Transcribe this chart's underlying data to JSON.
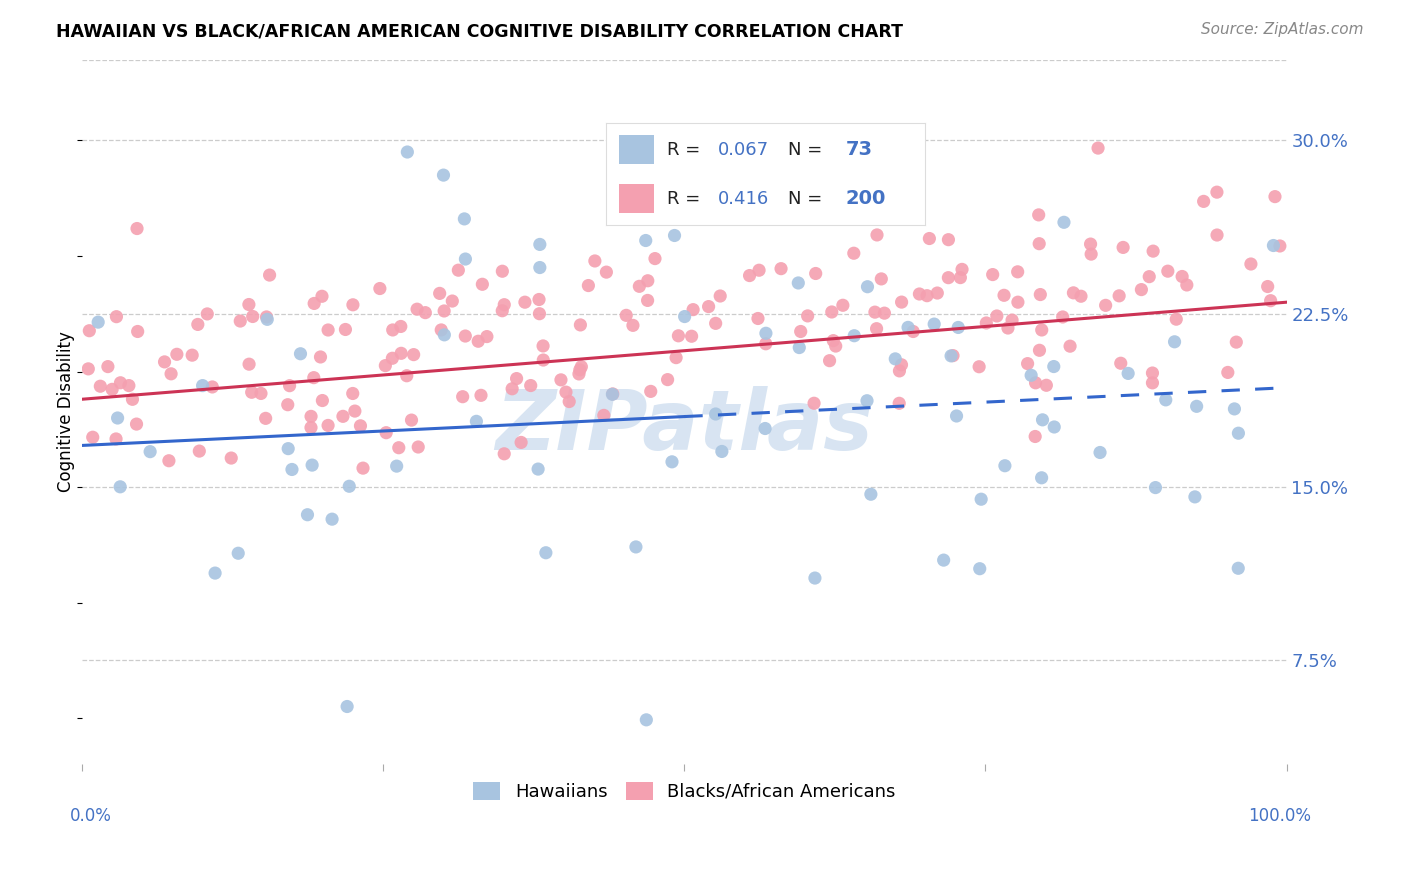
{
  "title": "HAWAIIAN VS BLACK/AFRICAN AMERICAN COGNITIVE DISABILITY CORRELATION CHART",
  "source": "Source: ZipAtlas.com",
  "ylabel": "Cognitive Disability",
  "ytick_labels": [
    "7.5%",
    "15.0%",
    "22.5%",
    "30.0%"
  ],
  "ytick_values": [
    0.075,
    0.15,
    0.225,
    0.3
  ],
  "xlim": [
    0.0,
    1.0
  ],
  "ylim": [
    0.03,
    0.335
  ],
  "hawaiian_R": 0.067,
  "hawaiian_N": 73,
  "black_R": 0.416,
  "black_N": 200,
  "hawaiian_color": "#a8c4e0",
  "black_color": "#f4a0b0",
  "hawaiian_line_color": "#3366CC",
  "black_line_color": "#CC3355",
  "legend_label_hawaiian": "Hawaiians",
  "legend_label_black": "Blacks/African Americans",
  "watermark": "ZIPatlas",
  "tick_color": "#4472C4",
  "title_color": "#000000",
  "source_color": "#888888"
}
